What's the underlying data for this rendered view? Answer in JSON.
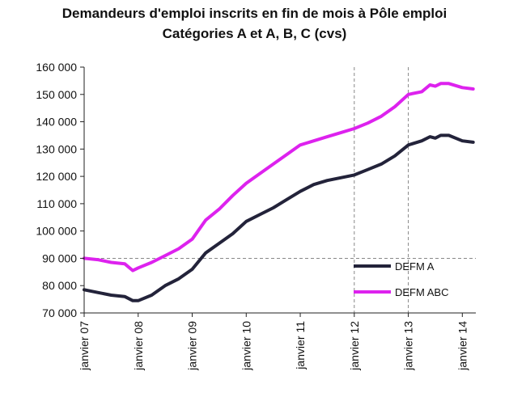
{
  "chart_data": {
    "type": "line",
    "title": "Demandeurs d'emploi inscrits en fin de mois à Pôle emploi",
    "subtitle": "Catégories A et A, B, C (cvs)",
    "xlabel": "",
    "ylabel": "",
    "ylim": [
      70000,
      160000
    ],
    "yticks": [
      70000,
      80000,
      90000,
      100000,
      110000,
      120000,
      130000,
      140000,
      150000,
      160000
    ],
    "ytick_labels": [
      "70 000",
      "80 000",
      "90 000",
      "100 000",
      "110 000",
      "120 000",
      "130 000",
      "140 000",
      "150 000",
      "160 000"
    ],
    "xlim": [
      2007.0,
      2014.25
    ],
    "xticks": [
      2007,
      2008,
      2009,
      2010,
      2011,
      2012,
      2013,
      2014
    ],
    "xtick_labels": [
      "janvier 07",
      "janvier 08",
      "janvier 09",
      "janvier 10",
      "janvier 11",
      "janvier 12",
      "janvier 13",
      "janvier 14"
    ],
    "grid": "dashed reference lines at 90 000, janvier 12 and janvier 13",
    "legend_position": "bottom-right",
    "series": [
      {
        "name": "DEFM A",
        "color": "#23233a",
        "points": [
          [
            2007.0,
            78500
          ],
          [
            2007.25,
            77500
          ],
          [
            2007.5,
            76500
          ],
          [
            2007.75,
            76000
          ],
          [
            2007.9,
            74500
          ],
          [
            2008.0,
            74500
          ],
          [
            2008.25,
            76500
          ],
          [
            2008.5,
            80000
          ],
          [
            2008.75,
            82500
          ],
          [
            2009.0,
            86000
          ],
          [
            2009.25,
            92000
          ],
          [
            2009.5,
            95500
          ],
          [
            2009.75,
            99000
          ],
          [
            2010.0,
            103500
          ],
          [
            2010.25,
            106000
          ],
          [
            2010.5,
            108500
          ],
          [
            2010.75,
            111500
          ],
          [
            2011.0,
            114500
          ],
          [
            2011.25,
            117000
          ],
          [
            2011.5,
            118500
          ],
          [
            2011.75,
            119500
          ],
          [
            2012.0,
            120500
          ],
          [
            2012.25,
            122500
          ],
          [
            2012.5,
            124500
          ],
          [
            2012.75,
            127500
          ],
          [
            2013.0,
            131500
          ],
          [
            2013.25,
            133000
          ],
          [
            2013.4,
            134500
          ],
          [
            2013.5,
            134000
          ],
          [
            2013.6,
            135000
          ],
          [
            2013.75,
            135000
          ],
          [
            2014.0,
            133000
          ],
          [
            2014.2,
            132500
          ]
        ]
      },
      {
        "name": "DEFM ABC",
        "color": "#dd22ee",
        "points": [
          [
            2007.0,
            90000
          ],
          [
            2007.25,
            89500
          ],
          [
            2007.5,
            88500
          ],
          [
            2007.75,
            88000
          ],
          [
            2007.9,
            85500
          ],
          [
            2008.0,
            86500
          ],
          [
            2008.25,
            88500
          ],
          [
            2008.5,
            91000
          ],
          [
            2008.75,
            93500
          ],
          [
            2009.0,
            97000
          ],
          [
            2009.25,
            104000
          ],
          [
            2009.5,
            108000
          ],
          [
            2009.75,
            113000
          ],
          [
            2010.0,
            117500
          ],
          [
            2010.25,
            121000
          ],
          [
            2010.5,
            124500
          ],
          [
            2010.75,
            128000
          ],
          [
            2011.0,
            131500
          ],
          [
            2011.25,
            133000
          ],
          [
            2011.5,
            134500
          ],
          [
            2011.75,
            136000
          ],
          [
            2012.0,
            137500
          ],
          [
            2012.25,
            139500
          ],
          [
            2012.5,
            142000
          ],
          [
            2012.75,
            145500
          ],
          [
            2013.0,
            150000
          ],
          [
            2013.25,
            151000
          ],
          [
            2013.4,
            153500
          ],
          [
            2013.5,
            153000
          ],
          [
            2013.6,
            154000
          ],
          [
            2013.75,
            154000
          ],
          [
            2014.0,
            152500
          ],
          [
            2014.2,
            152000
          ]
        ]
      }
    ]
  }
}
